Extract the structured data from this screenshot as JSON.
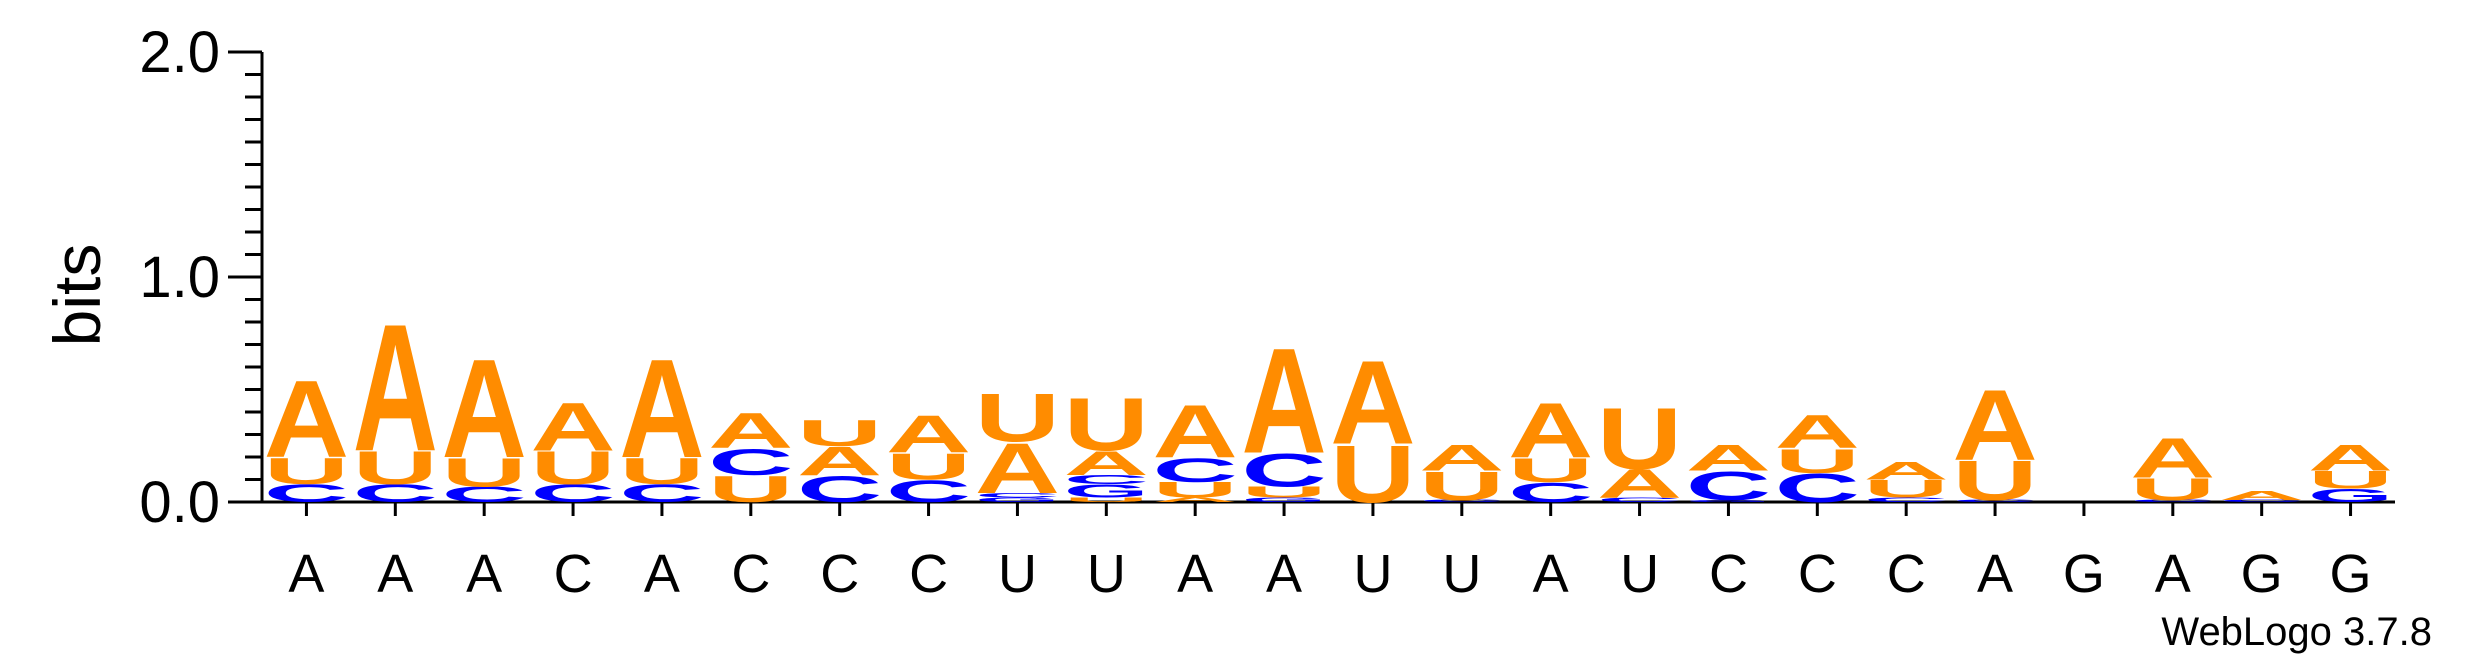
{
  "chart_data": {
    "type": "sequence-logo",
    "ylabel": "bits",
    "ylim": [
      0,
      2.0
    ],
    "yticks": [
      "0.0",
      "1.0",
      "2.0"
    ],
    "x_labels": [
      "A",
      "A",
      "A",
      "C",
      "A",
      "C",
      "C",
      "C",
      "U",
      "U",
      "A",
      "A",
      "U",
      "U",
      "A",
      "U",
      "C",
      "C",
      "C",
      "A",
      "G",
      "A",
      "G",
      "G"
    ],
    "colors": {
      "A": "#ff8c00",
      "U": "#ff8c00",
      "C": "#0000ff",
      "G": "#0000ff"
    },
    "positions": [
      [
        {
          "letter": "C",
          "bits": 0.08
        },
        {
          "letter": "U",
          "bits": 0.12
        },
        {
          "letter": "A",
          "bits": 0.35
        }
      ],
      [
        {
          "letter": "C",
          "bits": 0.08
        },
        {
          "letter": "U",
          "bits": 0.15
        },
        {
          "letter": "A",
          "bits": 0.58
        }
      ],
      [
        {
          "letter": "C",
          "bits": 0.07
        },
        {
          "letter": "U",
          "bits": 0.13
        },
        {
          "letter": "A",
          "bits": 0.45
        }
      ],
      [
        {
          "letter": "C",
          "bits": 0.08
        },
        {
          "letter": "U",
          "bits": 0.15
        },
        {
          "letter": "A",
          "bits": 0.22
        }
      ],
      [
        {
          "letter": "C",
          "bits": 0.08
        },
        {
          "letter": "U",
          "bits": 0.12
        },
        {
          "letter": "A",
          "bits": 0.45
        }
      ],
      [
        {
          "letter": "U",
          "bits": 0.12
        },
        {
          "letter": "C",
          "bits": 0.12
        },
        {
          "letter": "A",
          "bits": 0.16
        }
      ],
      [
        {
          "letter": "C",
          "bits": 0.12
        },
        {
          "letter": "A",
          "bits": 0.13
        },
        {
          "letter": "U",
          "bits": 0.12
        }
      ],
      [
        {
          "letter": "C",
          "bits": 0.1
        },
        {
          "letter": "U",
          "bits": 0.12
        },
        {
          "letter": "A",
          "bits": 0.17
        }
      ],
      [
        {
          "letter": "G",
          "bits": 0.02
        },
        {
          "letter": "C",
          "bits": 0.02
        },
        {
          "letter": "A",
          "bits": 0.23
        },
        {
          "letter": "U",
          "bits": 0.22
        }
      ],
      [
        {
          "letter": "U",
          "bits": 0.02
        },
        {
          "letter": "G",
          "bits": 0.06
        },
        {
          "letter": "C",
          "bits": 0.04
        },
        {
          "letter": "A",
          "bits": 0.11
        },
        {
          "letter": "U",
          "bits": 0.24
        }
      ],
      [
        {
          "letter": "A",
          "bits": 0.02
        },
        {
          "letter": "U",
          "bits": 0.07
        },
        {
          "letter": "C",
          "bits": 0.11
        },
        {
          "letter": "A",
          "bits": 0.24
        }
      ],
      [
        {
          "letter": "G",
          "bits": 0.02
        },
        {
          "letter": "U",
          "bits": 0.05
        },
        {
          "letter": "C",
          "bits": 0.15
        },
        {
          "letter": "A",
          "bits": 0.48
        }
      ],
      [
        {
          "letter": "U",
          "bits": 0.26
        },
        {
          "letter": "A",
          "bits": 0.38
        }
      ],
      [
        {
          "letter": "C",
          "bits": 0.01
        },
        {
          "letter": "U",
          "bits": 0.13
        },
        {
          "letter": "A",
          "bits": 0.12
        }
      ],
      [
        {
          "letter": "C",
          "bits": 0.09
        },
        {
          "letter": "U",
          "bits": 0.11
        },
        {
          "letter": "A",
          "bits": 0.25
        }
      ],
      [
        {
          "letter": "C",
          "bits": 0.02
        },
        {
          "letter": "A",
          "bits": 0.13
        },
        {
          "letter": "U",
          "bits": 0.28
        }
      ],
      [
        {
          "letter": "G",
          "bits": 0.01
        },
        {
          "letter": "C",
          "bits": 0.13
        },
        {
          "letter": "A",
          "bits": 0.12
        }
      ],
      [
        {
          "letter": "C",
          "bits": 0.13
        },
        {
          "letter": "U",
          "bits": 0.11
        },
        {
          "letter": "A",
          "bits": 0.15
        }
      ],
      [
        {
          "letter": "C",
          "bits": 0.02
        },
        {
          "letter": "U",
          "bits": 0.08
        },
        {
          "letter": "A",
          "bits": 0.08
        }
      ],
      [
        {
          "letter": "C",
          "bits": 0.01
        },
        {
          "letter": "U",
          "bits": 0.18
        },
        {
          "letter": "A",
          "bits": 0.32
        }
      ],
      [],
      [
        {
          "letter": "C",
          "bits": 0.01
        },
        {
          "letter": "U",
          "bits": 0.1
        },
        {
          "letter": "A",
          "bits": 0.18
        }
      ],
      [
        {
          "letter": "C",
          "bits": 0.01
        },
        {
          "letter": "A",
          "bits": 0.04
        }
      ],
      [
        {
          "letter": "G",
          "bits": 0.06
        },
        {
          "letter": "U",
          "bits": 0.08
        },
        {
          "letter": "A",
          "bits": 0.12
        }
      ]
    ]
  },
  "credit": "WebLogo 3.7.8"
}
